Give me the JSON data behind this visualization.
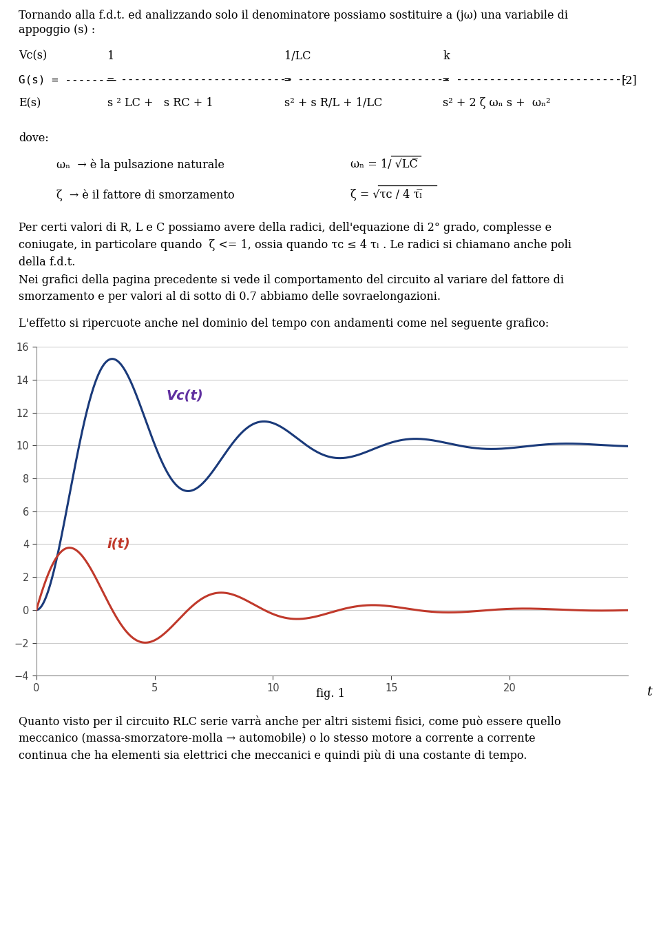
{
  "bg_color": "#ffffff",
  "text_color": "#000000",
  "vc_color": "#1a3a7a",
  "it_color": "#c0392b",
  "vc_label_color": "#6030a0",
  "it_label_color": "#c0392b",
  "graph_xlim": [
    0,
    25
  ],
  "graph_ylim": [
    -4,
    16
  ],
  "graph_yticks": [
    -4,
    -2,
    0,
    2,
    4,
    6,
    8,
    10,
    12,
    14,
    16
  ],
  "graph_xticks": [
    0,
    5,
    10,
    15,
    20
  ],
  "zeta_val": 0.2,
  "omega_n": 1.0,
  "step_amplitude": 10,
  "title_text_1": "Tornando alla f.d.t. ed analizzando solo il denominatore possiamo sostituire a (jω) una variabile di",
  "title_text_2": "appoggio (s) :",
  "para1_line1": "Per certi valori di R, L e C possiamo avere della radici, dell'equazione di 2° grado, complesse e",
  "para1_line2": "coniugate, in particolare quando  ζ <= 1, ossia quando τᴄ ≤ 4 τₗ . Le radici si chiamano anche poli",
  "para1_line3": "della f.d.t.",
  "para2_line1": "Nei grafici della pagina precedente si vede il comportamento del circuito al variare del fattore di",
  "para2_line2": "smorzamento e per valori al di sotto di 0.7 abbiamo delle sovraelongazioni.",
  "para3": "L'effetto si ripercuote anche nel dominio del tempo con andamenti come nel seguente grafico:",
  "fig_caption": "fig. 1",
  "para4_line1": "Quanto visto per il circuito RLC serie varrà anche per altri sistemi fisici, come può essere quello",
  "para4_line2": "meccanico (massa-smorzatore-molla → automobile) o lo stesso motore a corrente a corrente",
  "para4_line3": "continua che ha elementi sia elettrici che meccanici e quindi più di una costante di tempo."
}
